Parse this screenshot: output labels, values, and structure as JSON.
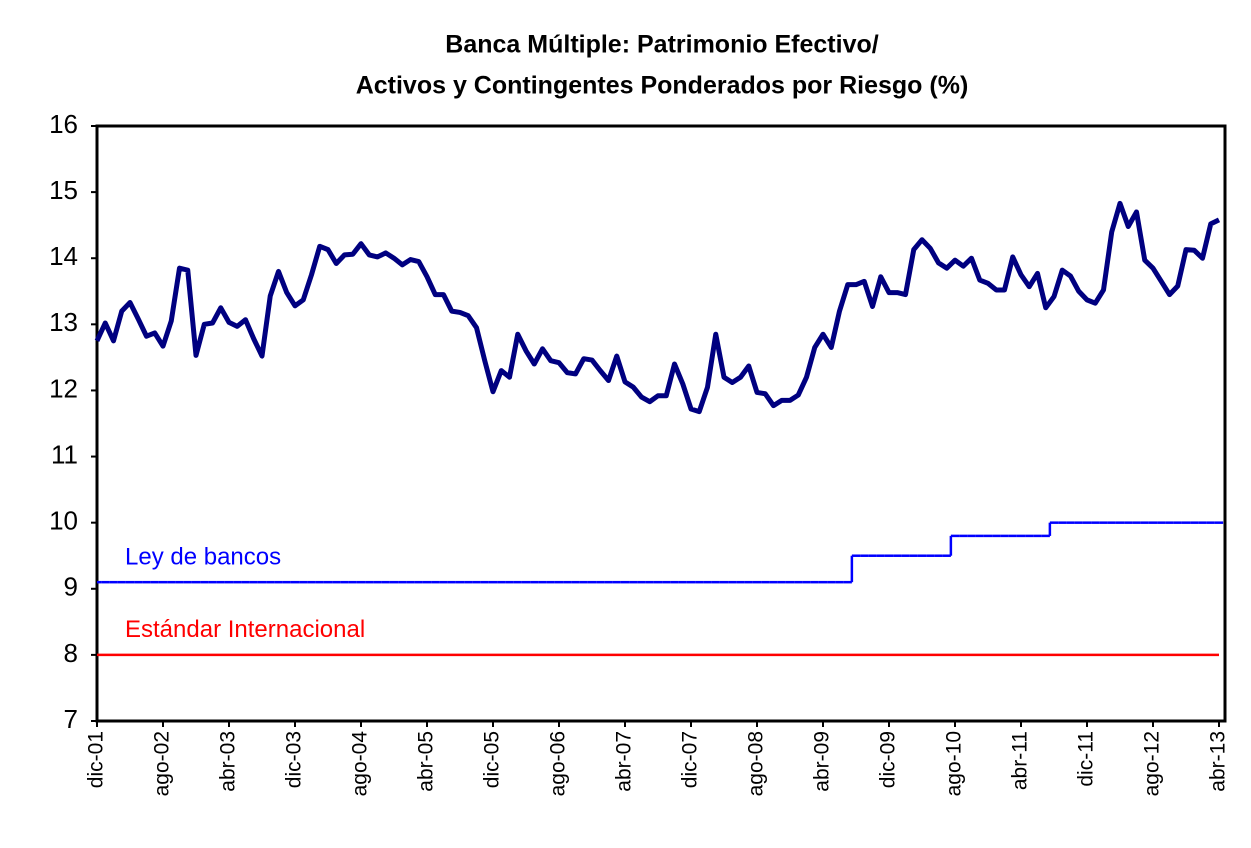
{
  "chart_data": {
    "type": "line",
    "title": [
      "Banca Múltiple: Patrimonio Efectivo/",
      "Activos y Contingentes Ponderados por Riesgo (%)"
    ],
    "categories": [
      "dic-01",
      null,
      null,
      null,
      null,
      null,
      null,
      null,
      "ago-02",
      null,
      null,
      null,
      null,
      null,
      null,
      null,
      "abr-03",
      null,
      null,
      null,
      null,
      null,
      null,
      null,
      "dic-03",
      null,
      null,
      null,
      null,
      null,
      null,
      null,
      "ago-04",
      null,
      null,
      null,
      null,
      null,
      null,
      null,
      "abr-05",
      null,
      null,
      null,
      null,
      null,
      null,
      null,
      "dic-05",
      null,
      null,
      null,
      null,
      null,
      null,
      null,
      "ago-06",
      null,
      null,
      null,
      null,
      null,
      null,
      null,
      "abr-07",
      null,
      null,
      null,
      null,
      null,
      null,
      null,
      "dic-07",
      null,
      null,
      null,
      null,
      null,
      null,
      null,
      "ago-08",
      null,
      null,
      null,
      null,
      null,
      null,
      null,
      "abr-09",
      null,
      null,
      null,
      null,
      null,
      null,
      null,
      "dic-09",
      null,
      null,
      null,
      null,
      null,
      null,
      null,
      "ago-10",
      null,
      null,
      null,
      null,
      null,
      null,
      null,
      "abr-11",
      null,
      null,
      null,
      null,
      null,
      null,
      null,
      "dic-11",
      null,
      null,
      null,
      null,
      null,
      null,
      null,
      "ago-12",
      null,
      null,
      null,
      null,
      null,
      null,
      null,
      "abr-13"
    ],
    "series": [
      {
        "name": "Banca Múltiple",
        "color": "#000080",
        "style": "line",
        "values": [
          12.75,
          13.02,
          12.75,
          13.2,
          13.33,
          13.08,
          12.82,
          12.87,
          12.67,
          13.05,
          13.85,
          13.82,
          12.53,
          13.0,
          13.02,
          13.25,
          13.03,
          12.97,
          13.07,
          12.78,
          12.52,
          13.43,
          13.8,
          13.48,
          13.28,
          13.37,
          13.75,
          14.18,
          14.13,
          13.92,
          14.05,
          14.06,
          14.22,
          14.05,
          14.02,
          14.08,
          14.0,
          13.9,
          13.98,
          13.95,
          13.72,
          13.45,
          13.45,
          13.2,
          13.18,
          13.13,
          12.95,
          12.45,
          11.98,
          12.3,
          12.2,
          12.85,
          12.6,
          12.4,
          12.63,
          12.45,
          12.42,
          12.27,
          12.25,
          12.48,
          12.46,
          12.3,
          12.15,
          12.52,
          12.13,
          12.05,
          11.9,
          11.83,
          11.92,
          11.92,
          12.4,
          12.1,
          11.72,
          11.68,
          12.05,
          12.85,
          12.2,
          12.12,
          12.2,
          12.37,
          11.97,
          11.95,
          11.77,
          11.85,
          11.85,
          11.93,
          12.2,
          12.65,
          12.85,
          12.65,
          13.2,
          13.6,
          13.6,
          13.65,
          13.27,
          13.72,
          13.48,
          13.48,
          13.45,
          14.13,
          14.28,
          14.15,
          13.93,
          13.85,
          13.97,
          13.88,
          14.0,
          13.67,
          13.62,
          13.52,
          13.52,
          14.02,
          13.75,
          13.57,
          13.77,
          13.25,
          13.42,
          13.82,
          13.73,
          13.5,
          13.37,
          13.32,
          13.52,
          14.4,
          14.83,
          14.48,
          14.7,
          13.97,
          13.85,
          13.65,
          13.45,
          13.58,
          14.13,
          14.12,
          14.0,
          14.52,
          14.58
        ]
      },
      {
        "name": "Ley de bancos",
        "color": "#0000ff",
        "style": "step",
        "values": [
          9.1,
          9.1,
          9.1,
          9.1,
          9.1,
          9.1,
          9.1,
          9.1,
          9.1,
          9.1,
          9.1,
          9.1,
          9.1,
          9.1,
          9.1,
          9.1,
          9.1,
          9.1,
          9.1,
          9.1,
          9.1,
          9.1,
          9.1,
          9.1,
          9.1,
          9.1,
          9.1,
          9.1,
          9.1,
          9.1,
          9.1,
          9.1,
          9.1,
          9.1,
          9.1,
          9.1,
          9.1,
          9.1,
          9.1,
          9.1,
          9.1,
          9.1,
          9.1,
          9.1,
          9.1,
          9.1,
          9.1,
          9.1,
          9.1,
          9.1,
          9.1,
          9.1,
          9.1,
          9.1,
          9.1,
          9.1,
          9.1,
          9.1,
          9.1,
          9.1,
          9.1,
          9.1,
          9.1,
          9.1,
          9.1,
          9.1,
          9.1,
          9.1,
          9.1,
          9.1,
          9.1,
          9.1,
          9.1,
          9.1,
          9.1,
          9.1,
          9.1,
          9.1,
          9.1,
          9.1,
          9.1,
          9.1,
          9.1,
          9.1,
          9.1,
          9.1,
          9.1,
          9.1,
          9.1,
          9.1,
          9.1,
          9.1,
          9.5,
          9.5,
          9.5,
          9.5,
          9.5,
          9.5,
          9.5,
          9.5,
          9.5,
          9.5,
          9.5,
          9.5,
          9.8,
          9.8,
          9.8,
          9.8,
          9.8,
          9.8,
          9.8,
          9.8,
          9.8,
          9.8,
          9.8,
          9.8,
          10,
          10,
          10,
          10,
          10,
          10,
          10,
          10,
          10,
          10,
          10,
          10,
          10,
          10,
          10,
          10,
          10,
          10,
          10,
          10,
          10
        ]
      },
      {
        "name": "Estándar Internacional",
        "color": "#ff0000",
        "style": "line",
        "values": [
          8,
          8,
          8,
          8,
          8,
          8,
          8,
          8,
          8,
          8,
          8,
          8,
          8,
          8,
          8,
          8,
          8,
          8,
          8,
          8,
          8,
          8,
          8,
          8,
          8,
          8,
          8,
          8,
          8,
          8,
          8,
          8,
          8,
          8,
          8,
          8,
          8,
          8,
          8,
          8,
          8,
          8,
          8,
          8,
          8,
          8,
          8,
          8,
          8,
          8,
          8,
          8,
          8,
          8,
          8,
          8,
          8,
          8,
          8,
          8,
          8,
          8,
          8,
          8,
          8,
          8,
          8,
          8,
          8,
          8,
          8,
          8,
          8,
          8,
          8,
          8,
          8,
          8,
          8,
          8,
          8,
          8,
          8,
          8,
          8,
          8,
          8,
          8,
          8,
          8,
          8,
          8,
          8,
          8,
          8,
          8,
          8,
          8,
          8,
          8,
          8,
          8,
          8,
          8,
          8,
          8,
          8,
          8,
          8,
          8,
          8,
          8,
          8,
          8,
          8,
          8,
          8,
          8,
          8,
          8,
          8,
          8,
          8,
          8,
          8,
          8,
          8,
          8,
          8,
          8,
          8,
          8,
          8,
          8,
          8,
          8,
          8
        ]
      }
    ],
    "ylim": [
      7,
      16
    ],
    "yticks": [
      7,
      8,
      9,
      10,
      11,
      12,
      13,
      14,
      15,
      16
    ],
    "grid": false
  }
}
